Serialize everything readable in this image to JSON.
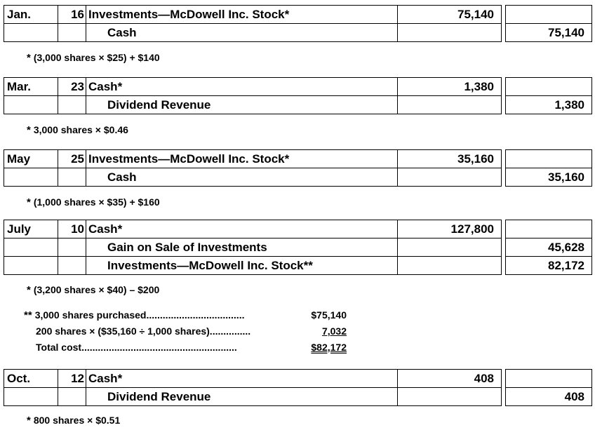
{
  "entries": [
    {
      "month": "Jan.",
      "day": "16",
      "debit_account": "Investments—McDowell Inc. Stock*",
      "debit_amount": "75,140",
      "credits": [
        {
          "account": "Cash",
          "amount": "75,140"
        }
      ],
      "note": "(3,000 shares × $25) + $140"
    },
    {
      "month": "Mar.",
      "day": "23",
      "debit_account": "Cash*",
      "debit_amount": "1,380",
      "credits": [
        {
          "account": "Dividend Revenue",
          "amount": "1,380"
        }
      ],
      "note": "3,000 shares × $0.46"
    },
    {
      "month": "May",
      "day": "25",
      "debit_account": "Investments—McDowell Inc. Stock*",
      "debit_amount": "35,160",
      "credits": [
        {
          "account": "Cash",
          "amount": "35,160"
        }
      ],
      "note": "(1,000 shares × $35) + $160"
    },
    {
      "month": "July",
      "day": "10",
      "debit_account": "Cash*",
      "debit_amount": "127,800",
      "credits": [
        {
          "account": "Gain on Sale of Investments",
          "amount": "45,628"
        },
        {
          "account": "Investments—McDowell Inc. Stock**",
          "amount": "82,172"
        }
      ],
      "note": "(3,200 shares × $40) – $200"
    },
    {
      "month": "Oct.",
      "day": "12",
      "debit_account": "Cash*",
      "debit_amount": "408",
      "credits": [
        {
          "account": "Dividend Revenue",
          "amount": "408"
        }
      ],
      "note": "800 shares × $0.51"
    }
  ],
  "note_marker": "*",
  "cost_calc": {
    "marker": "**",
    "rows": [
      {
        "label": "3,000 shares purchased....................................",
        "amount": "$75,140"
      },
      {
        "label": "200 shares × ($35,160 ÷ 1,000 shares)...............",
        "amount": "7,032"
      },
      {
        "label": "Total cost.........................................................",
        "amount": "$82,172"
      }
    ]
  }
}
